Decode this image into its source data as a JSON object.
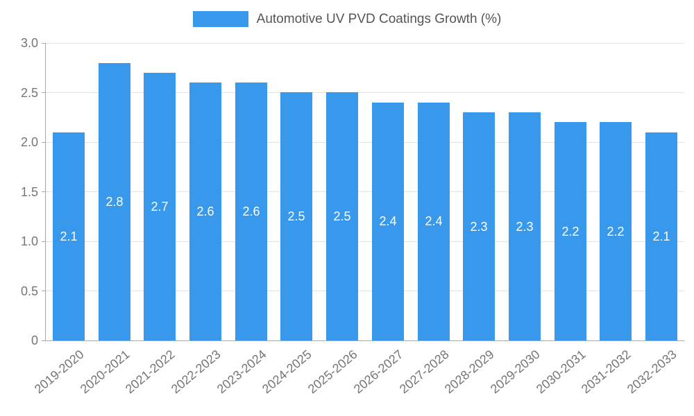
{
  "chart_data": {
    "type": "bar",
    "title": "Automotive UV PVD Coatings Growth (%)",
    "categories": [
      "2019-2020",
      "2020-2021",
      "2021-2022",
      "2022-2023",
      "2023-2024",
      "2024-2025",
      "2025-2026",
      "2026-2027",
      "2027-2028",
      "2028-2029",
      "2029-2030",
      "2030-2031",
      "2031-2032",
      "2032-2033"
    ],
    "values": [
      2.1,
      2.8,
      2.7,
      2.6,
      2.6,
      2.5,
      2.5,
      2.4,
      2.4,
      2.3,
      2.3,
      2.2,
      2.2,
      2.1
    ],
    "xlabel": "",
    "ylabel": "",
    "ylim": [
      0,
      3.0
    ],
    "yticks": [
      0,
      0.5,
      1.0,
      1.5,
      2.0,
      2.5,
      3.0
    ],
    "ytick_labels": [
      "0",
      "0.5",
      "1.0",
      "1.5",
      "2.0",
      "2.5",
      "3.0"
    ],
    "grid": true,
    "legend_position": "top",
    "colors": {
      "bar": "#3899ec",
      "value_label": "#ffffff",
      "title_text": "#555555",
      "axis_text": "#757575",
      "gridline": "#e3e3e3",
      "spine": "#a8a8a8",
      "background": "#ffffff"
    }
  }
}
